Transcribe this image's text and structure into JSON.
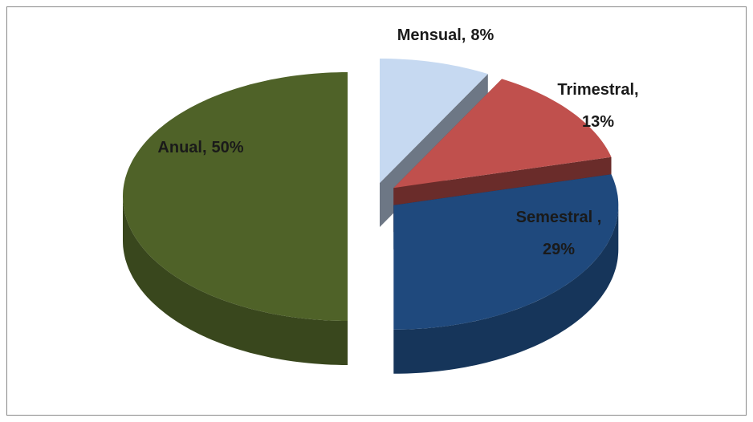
{
  "chart_data": {
    "type": "pie",
    "categories": [
      "Mensual,",
      "Trimestral,",
      "Semestral ,",
      "Anual,"
    ],
    "values": [
      8,
      13,
      29,
      50
    ],
    "value_labels": [
      "8%",
      "13%",
      "29%",
      "50%"
    ],
    "colors": [
      "#c6d9f1",
      "#c0504d",
      "#1f497d",
      "#4f6228"
    ],
    "three_d": true,
    "exploded": true
  }
}
